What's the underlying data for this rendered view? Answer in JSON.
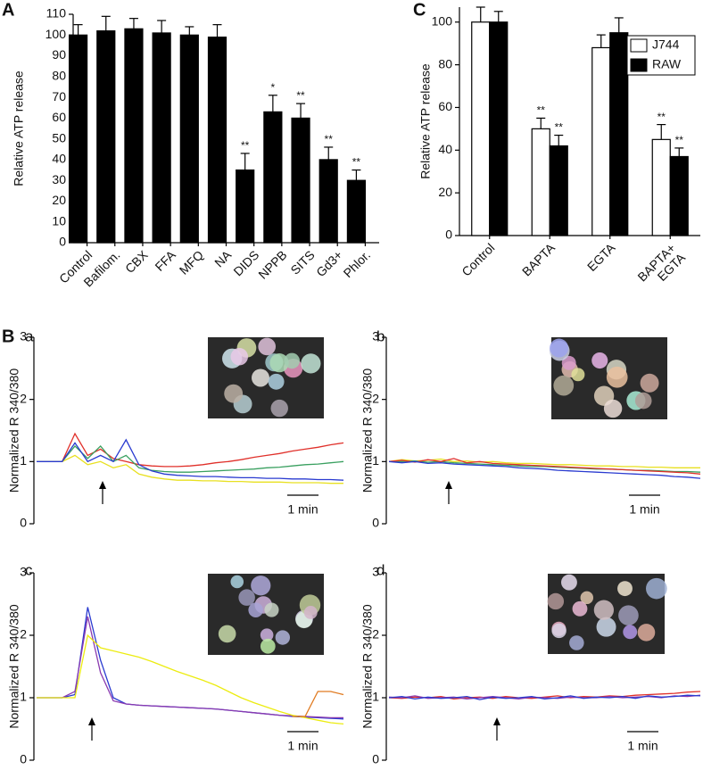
{
  "chart_data": [
    {
      "type": "bar",
      "panel": "A",
      "ylabel": "Relative ATP release",
      "categories": [
        "Control",
        "Bafilom.",
        "CBX",
        "FFA",
        "MFQ",
        "NA",
        "DIDS",
        "NPPB",
        "SITS",
        "Gd3+",
        "Phlor."
      ],
      "values": [
        100,
        102,
        103,
        101,
        100,
        99,
        35,
        63,
        60,
        40,
        30
      ],
      "errors": [
        5,
        7,
        5,
        6,
        4,
        6,
        8,
        8,
        7,
        6,
        5
      ],
      "color": "#000000",
      "annotations": [
        {
          "category": "DIDS",
          "text": "**"
        },
        {
          "category": "NPPB",
          "text": "*"
        },
        {
          "category": "SITS",
          "text": "**"
        },
        {
          "category": "Gd3+",
          "text": "**"
        },
        {
          "category": "Phlor.",
          "text": "**"
        }
      ],
      "ylim": [
        0,
        110
      ],
      "yticks": [
        0,
        10,
        20,
        30,
        40,
        50,
        60,
        70,
        80,
        90,
        100,
        110
      ]
    },
    {
      "type": "bar",
      "panel": "C",
      "ylabel": "Relative ATP release",
      "categories": [
        "Control",
        "BAPTA",
        "EGTA",
        "BAPTA+\nEGTA"
      ],
      "series": [
        {
          "name": "J744",
          "color": "#ffffff",
          "values": [
            100,
            50,
            88,
            45
          ],
          "errors": [
            7,
            5,
            6,
            7
          ],
          "annotations": [
            {
              "category": "BAPTA",
              "text": "**"
            },
            {
              "category": "BAPTA+\nEGTA",
              "text": "**"
            }
          ]
        },
        {
          "name": "RAW",
          "color": "#000000",
          "values": [
            100,
            42,
            95,
            37
          ],
          "errors": [
            5,
            5,
            7,
            4
          ],
          "annotations": [
            {
              "category": "BAPTA",
              "text": "**"
            },
            {
              "category": "BAPTA+\nEGTA",
              "text": "**"
            }
          ]
        }
      ],
      "legend": "upper right",
      "ylim": [
        0,
        107
      ],
      "yticks": [
        0,
        20,
        40,
        60,
        80,
        100
      ]
    },
    {
      "type": "line",
      "group": "B",
      "panel": "a",
      "ylabel": "Normalized R 340/380",
      "scale_bar": "1 min",
      "ylim": [
        0,
        3
      ],
      "yticks": [
        0,
        1,
        2,
        3
      ],
      "series": [
        {
          "color": "#e0302a",
          "values": [
            1,
            1,
            1,
            1.45,
            1.1,
            1.2,
            1.05,
            1.0,
            0.95,
            0.93,
            0.92,
            0.92,
            0.93,
            0.95,
            0.98,
            1.0,
            1.03,
            1.07,
            1.1,
            1.13,
            1.17,
            1.2,
            1.23,
            1.27,
            1.3
          ]
        },
        {
          "color": "#3aa060",
          "values": [
            1,
            1,
            1,
            1.25,
            1.05,
            1.25,
            1.0,
            1.1,
            0.9,
            0.86,
            0.84,
            0.83,
            0.83,
            0.84,
            0.85,
            0.86,
            0.87,
            0.88,
            0.9,
            0.91,
            0.93,
            0.95,
            0.96,
            0.98,
            1.0
          ]
        },
        {
          "color": "#e8e020",
          "values": [
            1,
            1,
            1,
            1.1,
            0.95,
            1.0,
            0.9,
            0.95,
            0.8,
            0.75,
            0.72,
            0.7,
            0.7,
            0.69,
            0.69,
            0.68,
            0.68,
            0.67,
            0.67,
            0.67,
            0.66,
            0.66,
            0.66,
            0.65,
            0.65
          ]
        },
        {
          "color": "#2a3bd0",
          "values": [
            1,
            1,
            1,
            1.3,
            1.0,
            1.1,
            1.0,
            1.35,
            0.95,
            0.85,
            0.8,
            0.78,
            0.77,
            0.76,
            0.76,
            0.75,
            0.74,
            0.74,
            0.73,
            0.73,
            0.72,
            0.72,
            0.71,
            0.71,
            0.7
          ]
        }
      ]
    },
    {
      "type": "line",
      "panel": "b",
      "ylabel": "Normalized R 340/380",
      "scale_bar": "1 min",
      "ylim": [
        0,
        3
      ],
      "yticks": [
        0,
        1,
        2,
        3
      ],
      "series": [
        {
          "color": "#e8e020",
          "values": [
            1,
            1.03,
            1.01,
            1.02,
            1.04,
            1.0,
            1.01,
            0.99,
            1.0,
            0.98,
            0.97,
            0.97,
            0.96,
            0.95,
            0.95,
            0.94,
            0.93,
            0.93,
            0.92,
            0.92,
            0.91,
            0.91,
            0.9,
            0.9,
            0.9
          ]
        },
        {
          "color": "#3aa060",
          "values": [
            1,
            1,
            1.01,
            0.99,
            1.0,
            0.98,
            0.97,
            0.96,
            0.95,
            0.94,
            0.93,
            0.92,
            0.92,
            0.91,
            0.9,
            0.89,
            0.88,
            0.88,
            0.87,
            0.86,
            0.86,
            0.85,
            0.84,
            0.84,
            0.83
          ]
        },
        {
          "color": "#e0302a",
          "values": [
            1,
            1.02,
            0.99,
            1.03,
            1.0,
            1.05,
            0.98,
            1.0,
            0.97,
            0.96,
            0.95,
            0.94,
            0.93,
            0.92,
            0.91,
            0.9,
            0.89,
            0.88,
            0.87,
            0.86,
            0.85,
            0.84,
            0.83,
            0.82,
            0.8
          ]
        },
        {
          "color": "#2a3bd0",
          "values": [
            1,
            0.98,
            1.0,
            0.97,
            0.98,
            0.96,
            0.95,
            0.94,
            0.93,
            0.92,
            0.9,
            0.89,
            0.88,
            0.86,
            0.85,
            0.84,
            0.83,
            0.82,
            0.81,
            0.8,
            0.79,
            0.78,
            0.76,
            0.75,
            0.73
          ]
        }
      ]
    },
    {
      "type": "line",
      "panel": "c",
      "ylabel": "Normalized R 340/380",
      "scale_bar": "1 min",
      "ylim": [
        0,
        3
      ],
      "yticks": [
        0,
        1,
        2,
        3
      ],
      "series": [
        {
          "color": "#2a3bd0",
          "values": [
            1,
            1,
            1,
            1.05,
            2.45,
            1.6,
            1.0,
            0.9,
            0.88,
            0.87,
            0.86,
            0.85,
            0.84,
            0.83,
            0.82,
            0.8,
            0.78,
            0.76,
            0.74,
            0.72,
            0.7,
            0.69,
            0.68,
            0.67,
            0.66
          ]
        },
        {
          "color": "#8a3ab0",
          "values": [
            1,
            1,
            1,
            1.1,
            2.3,
            1.4,
            0.95,
            0.9,
            0.88,
            0.87,
            0.86,
            0.85,
            0.84,
            0.83,
            0.82,
            0.8,
            0.78,
            0.76,
            0.74,
            0.72,
            0.71,
            0.7,
            0.69,
            0.68,
            0.68
          ]
        },
        {
          "color": "#ecec10",
          "values": [
            1,
            1,
            1,
            1.0,
            2.0,
            1.8,
            1.75,
            1.7,
            1.65,
            1.58,
            1.5,
            1.42,
            1.35,
            1.28,
            1.2,
            1.1,
            1.0,
            0.92,
            0.85,
            0.78,
            0.72,
            0.68,
            0.64,
            0.6,
            0.58
          ]
        },
        {
          "color": "#e07a20",
          "values": [
            null,
            null,
            null,
            null,
            null,
            null,
            null,
            null,
            null,
            null,
            null,
            null,
            null,
            null,
            null,
            null,
            null,
            null,
            null,
            null,
            0.7,
            0.7,
            1.1,
            1.1,
            1.05
          ]
        }
      ]
    },
    {
      "type": "line",
      "panel": "d",
      "ylabel": "Normalized R 340/380",
      "scale_bar": "1 min",
      "ylim": [
        0,
        3
      ],
      "yticks": [
        0,
        1,
        2,
        3
      ],
      "series": [
        {
          "color": "#e0302a",
          "values": [
            1,
            0.99,
            1.01,
            1.0,
            1.02,
            0.98,
            1.0,
            1.01,
            0.99,
            1.02,
            1.0,
            0.99,
            1.01,
            1.03,
            1.0,
            1.02,
            1.01,
            1.03,
            1.02,
            1.04,
            1.05,
            1.06,
            1.07,
            1.09,
            1.1
          ]
        },
        {
          "color": "#8a3ab0",
          "values": [
            1.01,
            1.0,
            1.03,
            0.99,
            1.0,
            1.01,
            0.98,
            1.0,
            1.02,
            1.0,
            0.98,
            1.01,
            1.0,
            0.99,
            1.01,
            1.0,
            1.0,
            1.02,
            1.0,
            1.01,
            1.02,
            1.0,
            1.03,
            1.02,
            1.04
          ]
        },
        {
          "color": "#2a3bd0",
          "values": [
            1,
            1.02,
            0.98,
            1.01,
            0.99,
            1.0,
            1.02,
            0.97,
            1.01,
            0.99,
            1.0,
            1.02,
            0.98,
            1.0,
            1.03,
            0.99,
            1.01,
            1.0,
            1.02,
            0.99,
            1.03,
            1.01,
            1.02,
            1.04,
            1.03
          ]
        }
      ]
    }
  ]
}
